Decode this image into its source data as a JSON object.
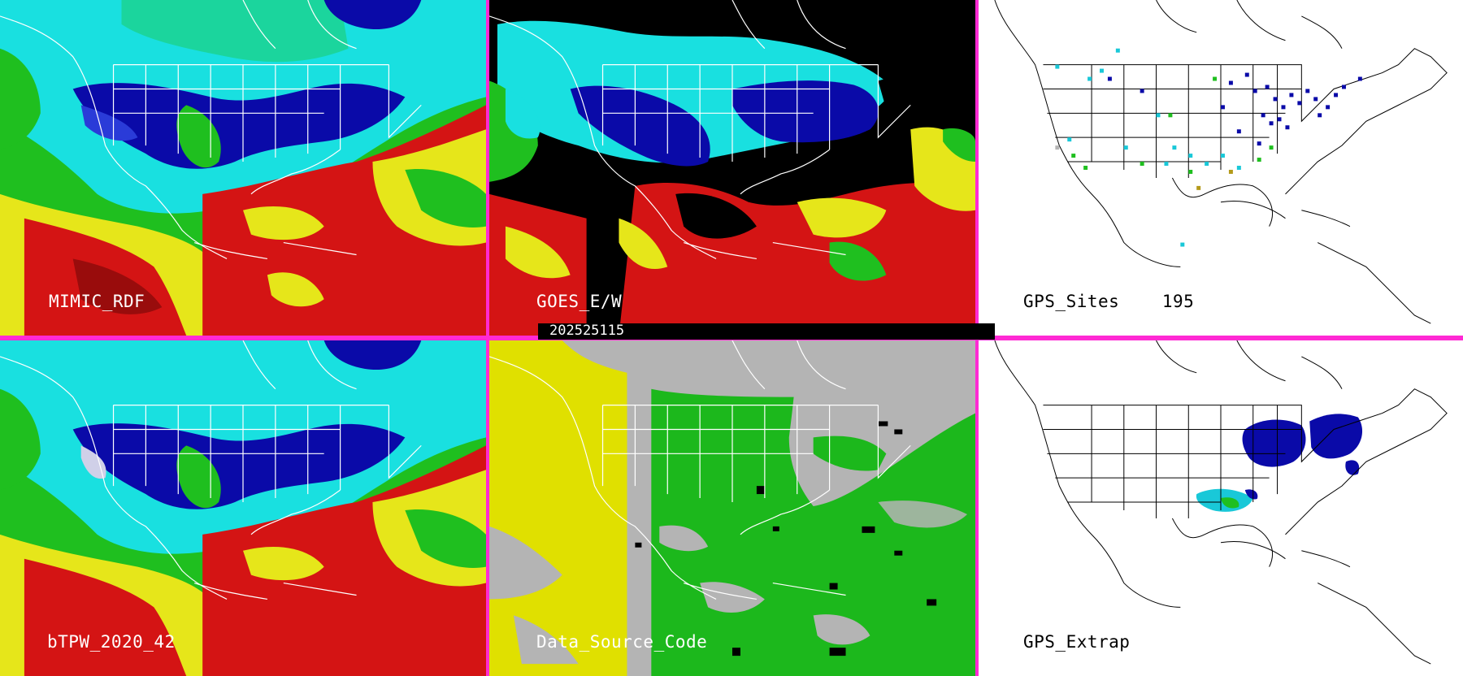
{
  "panels": {
    "mimic_rdf": {
      "label": "MIMIC_RDF"
    },
    "goes_ew": {
      "label": "GOES_E/W"
    },
    "gps_sites": {
      "label": "GPS_Sites",
      "count": "195"
    },
    "btpw": {
      "label": "bTPW_2020_42"
    },
    "data_source": {
      "label": "Data_Source_Code"
    },
    "gps_extrap": {
      "label": "GPS_Extrap"
    }
  },
  "timestamp": "202525115",
  "colors": {
    "separator": "#ff2ad4",
    "tpw_low": "#0a0aa8",
    "tpw_midlow": "#2a3bd8",
    "tpw_cyan": "#19e0e0",
    "tpw_green": "#1fbf1f",
    "tpw_yellow": "#e6e61a",
    "tpw_red": "#d41414",
    "tpw_dark": "#8a0a0a",
    "source_yellow": "#e0e000",
    "source_green": "#1cb81c",
    "source_gray": "#b4b4b4",
    "coastline": "#ffffff",
    "map_line": "#000000"
  }
}
